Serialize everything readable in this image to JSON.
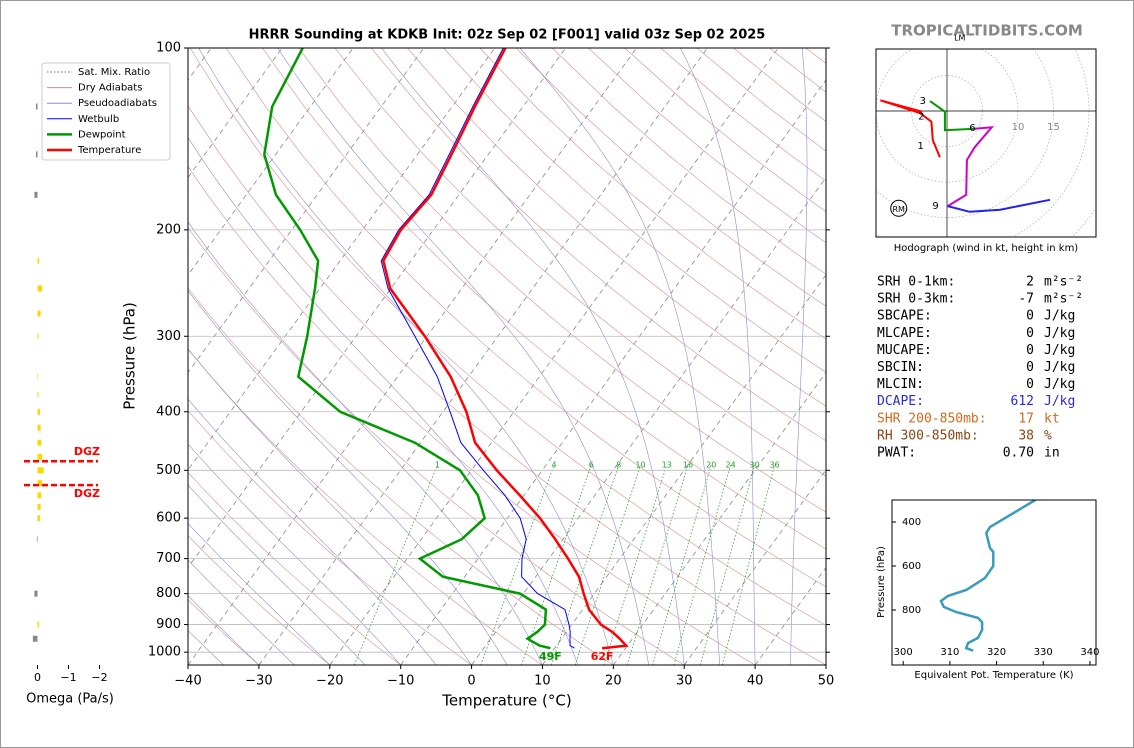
{
  "watermark": "TROPICALTIDBITS.COM",
  "chart_data": [
    {
      "type": "skewt",
      "title": "HRRR Sounding at KDKB Init: 02z Sep 02 [F001] valid 03z Sep 02 2025",
      "xlabel": "Temperature (°C)",
      "ylabel": "Pressure (hPa)",
      "xlim": [
        -40,
        50
      ],
      "ylim": [
        1050,
        100
      ],
      "log_y": true,
      "xticks": [
        {
          "value": -40,
          "label": "−40"
        },
        {
          "value": -30,
          "label": "−30"
        },
        {
          "value": -20,
          "label": "−20"
        },
        {
          "value": -10,
          "label": "−10"
        },
        0,
        10,
        20,
        30,
        40,
        50
      ],
      "yticks": [
        100,
        200,
        300,
        400,
        500,
        600,
        700,
        800,
        900,
        1000
      ],
      "legend": "upper left",
      "pressure": [
        985,
        975,
        950,
        925,
        900,
        850,
        800,
        750,
        700,
        650,
        600,
        550,
        500,
        450,
        400,
        350,
        300,
        250,
        225,
        200,
        175,
        150,
        125,
        100
      ],
      "series": [
        {
          "name": "Wetbulb",
          "color": "#0000ff",
          "values": [
            12.8,
            11.9,
            11.2,
            10.5,
            9.6,
            7.5,
            2.0,
            -2.0,
            -3.8,
            -5.2,
            -8.2,
            -12.7,
            -18.3,
            -24.3,
            -29.0,
            -34.4,
            -41.7,
            -50.4,
            -54.2,
            -54.9,
            -54.2,
            -55.5,
            -57.1,
            -58.8
          ]
        },
        {
          "name": "Dewpoint",
          "color": "#009900",
          "values": [
            9.4,
            7.6,
            5.2,
            5.9,
            6.2,
            4.8,
            -0.5,
            -13.1,
            -18.2,
            -14.3,
            -13.2,
            -16.5,
            -21.6,
            -30.8,
            -44.5,
            -54.0,
            -56.9,
            -60.7,
            -63.1,
            -68.8,
            -75.8,
            -81.6,
            -85.4,
            -87.1
          ]
        },
        {
          "name": "Temperature",
          "color": "#ff0000",
          "values": [
            16.7,
            19.8,
            18.2,
            16.4,
            14.1,
            10.9,
            8.5,
            6.1,
            2.7,
            -1.1,
            -5.4,
            -10.6,
            -16.4,
            -22.3,
            -26.7,
            -32.5,
            -40.3,
            -50.1,
            -53.9,
            -54.6,
            -53.9,
            -55.2,
            -56.8,
            -58.5
          ]
        }
      ],
      "background_lines": [
        {
          "name": "Sat. Mix. Ratio",
          "color": "#2ca02c",
          "style": "dotted"
        },
        {
          "name": "Dry Adiabats",
          "color": "#d98c8c",
          "style": "solid"
        },
        {
          "name": "Pseudoadiabats",
          "color": "#8c8cd9",
          "style": "solid"
        }
      ],
      "isotherm_color": "#888888",
      "mixing_ratios": [
        1,
        4,
        6,
        8,
        10,
        13,
        16,
        20,
        24,
        30,
        36
      ],
      "annotations": [
        {
          "text": "49F",
          "series": 1
        },
        {
          "text": "62F",
          "series": 2
        }
      ]
    },
    {
      "type": "hodograph",
      "title": "Hodograph (wind in kt, height in km)",
      "ring_labels": [
        10,
        15
      ],
      "segments": [
        {
          "color": "#ff0000",
          "u": [
            -1,
            -2.0,
            -2.2,
            -3.8,
            -9.4,
            -3.5
          ],
          "v": [
            -6.5,
            -4.1,
            -1.5,
            -0.3,
            1.5,
            -0.1
          ]
        },
        {
          "color": "#009900",
          "u": [
            -2.4,
            -0.3,
            -0.3,
            3.9
          ],
          "v": [
            1.4,
            -0.1,
            -2.7,
            -2.5
          ]
        },
        {
          "color": "#cc00cc",
          "u": [
            3.9,
            6.3,
            3.9,
            2.8,
            2.7,
            0.1
          ],
          "v": [
            -2.5,
            -2.3,
            -5.1,
            -6.9,
            -11.8,
            -13.4
          ]
        },
        {
          "color": "#2222ee",
          "u": [
            0.1,
            3.2,
            7.5,
            14.5
          ],
          "v": [
            -13.4,
            -14.2,
            -13.9,
            -12.5
          ]
        }
      ],
      "height_marks": [
        {
          "height": 1,
          "u": -2.7,
          "v": -4.9
        },
        {
          "height": 2,
          "u": -2.6,
          "v": -0.8
        },
        {
          "height": 3,
          "u": -2.4,
          "v": 1.4
        },
        {
          "height": 6,
          "u": 4.6,
          "v": -2.4
        },
        {
          "height": 9,
          "u": -0.6,
          "v": -13.4
        }
      ],
      "storm_motion": [
        {
          "label": "RM",
          "u": -6.8,
          "v": -13.7
        },
        {
          "label": "LM",
          "u": 1.8,
          "v": 10.4
        }
      ]
    },
    {
      "type": "line",
      "xlabel": "Equivalent Pot. Temperature (K)",
      "ylabel": "Pressure (hPa)",
      "xlim": [
        297.6,
        341.3
      ],
      "ylim": [
        1050,
        300
      ],
      "xticks": [
        300,
        310,
        320,
        330,
        340
      ],
      "yticks": [
        400,
        600,
        800
      ],
      "color": "#3a9bbd",
      "pressure": [
        300,
        423,
        450,
        518,
        536,
        600,
        655,
        709,
        736,
        759,
        786,
        809,
        836,
        855,
        891,
        927,
        950,
        973,
        985
      ],
      "values": [
        328.3,
        318.6,
        317.8,
        318.6,
        319.3,
        319.3,
        317.5,
        313.5,
        309.6,
        308.1,
        308.7,
        311.3,
        316,
        316.9,
        316.9,
        316,
        313.9,
        313.5,
        315
      ]
    },
    {
      "type": "bar",
      "xlabel": "Omega (Pa/s)",
      "xlim": [
        0.5,
        -2.5
      ],
      "xticks": [
        0,
        {
          "value": -1,
          "label": "−1"
        },
        {
          "value": -2,
          "label": "−2"
        }
      ],
      "pressure": [
        125,
        150,
        175,
        225,
        250,
        275,
        300,
        350,
        375,
        400,
        425,
        450,
        475,
        500,
        525,
        550,
        575,
        600,
        650,
        800,
        900,
        950
      ],
      "values": [
        0.05,
        0.05,
        0.1,
        -0.05,
        -0.15,
        -0.1,
        -0.03,
        -0.02,
        -0.03,
        -0.08,
        -0.1,
        -0.12,
        -0.15,
        -0.2,
        -0.15,
        -0.12,
        -0.1,
        -0.08,
        0.02,
        0.1,
        -0.05,
        0.15
      ],
      "colors": {
        "upward": "#ffd700",
        "downward": "#888888"
      },
      "dgz": {
        "labels": [
          "DGZ",
          "DGZ"
        ],
        "pressure": [
          483,
          529
        ],
        "color": "#ff0000"
      }
    }
  ],
  "stats": [
    {
      "label": "SRH 0-1km:",
      "value": "2",
      "unit": "m²s⁻²",
      "color": "#000000"
    },
    {
      "label": "SRH 0-3km:",
      "value": "-7",
      "unit": "m²s⁻²",
      "color": "#000000"
    },
    {
      "label": "SBCAPE:",
      "value": "0",
      "unit": "J/kg",
      "color": "#000000"
    },
    {
      "label": "MLCAPE:",
      "value": "0",
      "unit": "J/kg",
      "color": "#000000"
    },
    {
      "label": "MUCAPE:",
      "value": "0",
      "unit": "J/kg",
      "color": "#000000"
    },
    {
      "label": "SBCIN:",
      "value": "0",
      "unit": "J/kg",
      "color": "#000000"
    },
    {
      "label": "MLCIN:",
      "value": "0",
      "unit": "J/kg",
      "color": "#000000"
    },
    {
      "label": "DCAPE:",
      "value": "612",
      "unit": "J/kg",
      "color": "#2a2ad8"
    },
    {
      "label": "SHR 200-850mb:",
      "value": "17",
      "unit": "kt",
      "color": "#d2691e"
    },
    {
      "label": "RH 300-850mb:",
      "value": "38",
      "unit": "%",
      "color": "#8b4513"
    },
    {
      "label": "PWAT:",
      "value": "0.70",
      "unit": "in",
      "color": "#000000"
    }
  ]
}
